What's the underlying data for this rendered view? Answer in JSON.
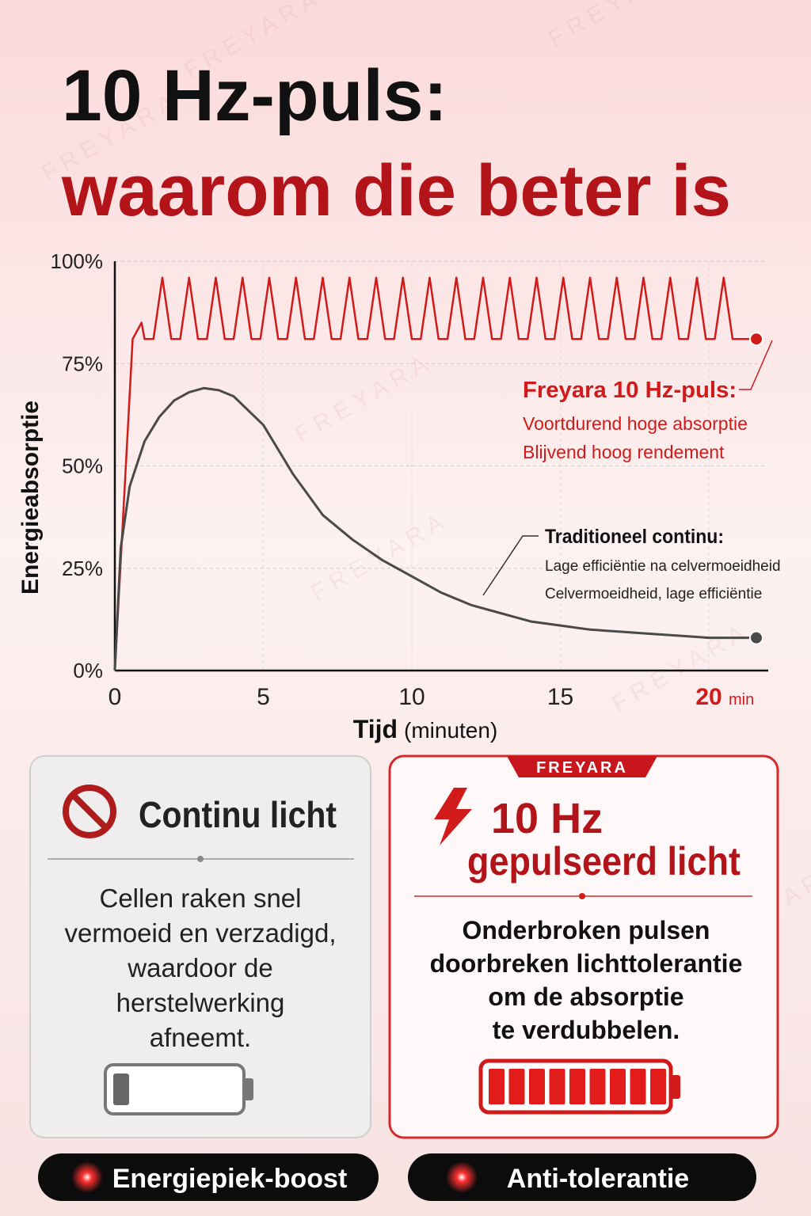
{
  "header": {
    "title": "10 Hz-puls:",
    "subtitle": "waarom die beter is"
  },
  "watermark": "FREYARA",
  "chart_data": {
    "type": "line",
    "ylabel": "Energieabsorptie",
    "xlabel": "Tijd",
    "xlabel_unit": "(minuten)",
    "xunit": "min",
    "xlim": [
      0,
      22
    ],
    "xticks": [
      0,
      5,
      10,
      15,
      20
    ],
    "ylim": [
      0,
      100
    ],
    "yticks": [
      {
        "value": 0,
        "label": "0%"
      },
      {
        "value": 25,
        "label": "25%"
      },
      {
        "value": 50,
        "label": "50%"
      },
      {
        "value": 75,
        "label": "75%"
      },
      {
        "value": 100,
        "label": "100%"
      }
    ],
    "grid": true,
    "series": [
      {
        "name": "Freyara 10 Hz-puls:",
        "color": "#d11a1a",
        "notes": [
          "Voortdurend hoge absorptie",
          "Blijvend hoog rendement"
        ],
        "x": [
          0,
          0.6,
          0.9,
          1.0,
          1.3,
          1.6,
          1.9,
          2.2,
          2.5,
          2.8,
          3.1,
          3.4,
          3.7,
          4.0,
          4.3,
          4.6,
          4.9,
          5.2,
          5.5,
          5.8,
          6.1,
          6.4,
          6.7,
          7.0,
          7.3,
          7.6,
          7.9,
          8.2,
          8.5,
          8.8,
          9.1,
          9.4,
          9.7,
          10.0,
          10.3,
          10.6,
          10.9,
          11.2,
          11.5,
          11.8,
          12.1,
          12.4,
          12.7,
          13.0,
          13.3,
          13.6,
          13.9,
          14.2,
          14.5,
          14.8,
          15.1,
          15.4,
          15.7,
          16.0,
          16.3,
          16.6,
          16.9,
          17.2,
          17.5,
          17.8,
          18.1,
          18.4,
          18.7,
          19.0,
          19.3,
          19.6,
          19.9,
          20.2,
          20.5,
          20.8,
          21.6
        ],
        "values": [
          0,
          81,
          85,
          81,
          81,
          96,
          81,
          81,
          96,
          81,
          81,
          96,
          81,
          81,
          96,
          81,
          81,
          96,
          81,
          81,
          96,
          81,
          81,
          96,
          81,
          81,
          96,
          81,
          81,
          96,
          81,
          81,
          96,
          81,
          81,
          96,
          81,
          81,
          96,
          81,
          81,
          96,
          81,
          81,
          96,
          81,
          81,
          96,
          81,
          81,
          96,
          81,
          81,
          96,
          81,
          81,
          96,
          81,
          81,
          96,
          81,
          81,
          96,
          81,
          81,
          96,
          81,
          81,
          96,
          81,
          81
        ]
      },
      {
        "name": "Traditioneel continu:",
        "color": "#4a4a4a",
        "notes": [
          "Lage efficiëntie na celvermoeidheid",
          "Celvermoeidheid, lage efficiëntie"
        ],
        "x": [
          0,
          0.2,
          0.5,
          1,
          1.5,
          2,
          2.5,
          3,
          3.5,
          4,
          5,
          6,
          7,
          8,
          9,
          10,
          11,
          12,
          13,
          14,
          15,
          16,
          17,
          18,
          19,
          20,
          21,
          21.6
        ],
        "values": [
          0,
          30,
          45,
          56,
          62,
          66,
          68,
          69,
          68.5,
          67,
          60,
          48,
          38,
          32,
          27,
          23,
          19,
          16,
          14,
          12,
          11,
          10,
          9.5,
          9,
          8.5,
          8,
          8,
          8
        ]
      }
    ]
  },
  "left_card": {
    "title": "Continu licht",
    "body": [
      "Cellen raken snel",
      "vermoeid en verzadigd,",
      "waardoor de",
      "herstelwerking",
      "afneemt."
    ]
  },
  "right_card": {
    "badge": "FREYARA",
    "title": "10 Hz",
    "title2": "gepulseerd licht",
    "body": [
      "Onderbroken pulsen",
      "doorbreken lichttolerantie",
      "om de absorptie",
      "te verdubbelen."
    ]
  },
  "buttons": [
    "Energiepiek-boost",
    "Anti-tolerantie"
  ]
}
